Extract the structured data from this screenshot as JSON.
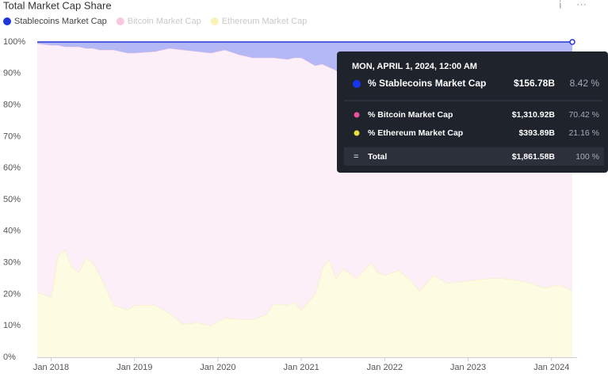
{
  "chart_data": {
    "type": "area",
    "stacked": true,
    "title": "Total Market Cap Share",
    "x": [
      "2017-11",
      "2018-01",
      "2018-02",
      "2018-03",
      "2018-04",
      "2018-05",
      "2018-06",
      "2018-07",
      "2018-08",
      "2018-10",
      "2018-12",
      "2019-01",
      "2019-04",
      "2019-06",
      "2019-08",
      "2019-10",
      "2019-12",
      "2020-02",
      "2020-04",
      "2020-06",
      "2020-08",
      "2020-09",
      "2020-11",
      "2020-12",
      "2021-01",
      "2021-03",
      "2021-04",
      "2021-05",
      "2021-06",
      "2021-07",
      "2021-09",
      "2021-11",
      "2021-12",
      "2022-01",
      "2022-03",
      "2022-05",
      "2022-06",
      "2022-08",
      "2022-10",
      "2022-12",
      "2023-02",
      "2023-04",
      "2023-06",
      "2023-08",
      "2023-10",
      "2023-12",
      "2024-02",
      "2024-04"
    ],
    "series": [
      {
        "name": "Stablecoins Market Cap",
        "color": "#1f36d8",
        "fill": "#b4b9f6",
        "values": [
          0.5,
          1,
          1,
          1.5,
          1.5,
          1.5,
          2,
          2,
          2.5,
          2.5,
          3.5,
          3.5,
          3,
          2,
          2.5,
          3,
          3.5,
          2.5,
          4,
          5,
          5,
          5,
          5.5,
          5,
          5,
          7.5,
          7,
          8,
          9,
          11,
          10,
          9,
          10,
          11,
          12,
          14,
          15,
          14,
          14,
          14,
          13,
          12,
          11.5,
          11,
          10,
          9,
          8.5,
          8.42
        ]
      },
      {
        "name": "Bitcoin Market Cap",
        "color": "#f6c7e0",
        "fill": "#fdeff7",
        "values": [
          79,
          80,
          66.5,
          64.5,
          70,
          71.5,
          66.5,
          68,
          71.5,
          81,
          81.5,
          80,
          80.5,
          84,
          87,
          86,
          86.5,
          85,
          84,
          83,
          81.5,
          78,
          78,
          77.5,
          80,
          72.5,
          65,
          61,
          66,
          61,
          65,
          61,
          63,
          63,
          60.5,
          62,
          64,
          60,
          62.5,
          62,
          62.5,
          63,
          63.5,
          64.5,
          66.5,
          69,
          68.5,
          70.42
        ]
      },
      {
        "name": "Ethereum Market Cap",
        "color": "#f2ecb8",
        "fill": "#fdfbe2",
        "values": [
          20.5,
          19,
          32.5,
          34,
          28.5,
          27,
          31.5,
          30,
          26,
          16.5,
          15,
          16.5,
          16.5,
          14,
          10.5,
          11,
          10,
          12.5,
          12,
          12,
          13.5,
          17,
          16.5,
          17.5,
          15,
          20,
          28,
          31,
          25,
          28,
          25,
          30,
          27,
          26,
          27.5,
          24,
          21,
          26,
          23.5,
          24,
          24.5,
          25,
          25,
          24.5,
          23.5,
          22,
          23,
          21.16
        ]
      }
    ],
    "xlim": [
      "2017-11",
      "2024-04"
    ],
    "xticks": [
      {
        "value": "2018-01",
        "label": "Jan 2018"
      },
      {
        "value": "2019-01",
        "label": "Jan 2019"
      },
      {
        "value": "2020-01",
        "label": "Jan 2020"
      },
      {
        "value": "2021-01",
        "label": "Jan 2021"
      },
      {
        "value": "2022-01",
        "label": "Jan 2022"
      },
      {
        "value": "2023-01",
        "label": "Jan 2023"
      },
      {
        "value": "2024-01",
        "label": "Jan 2024"
      }
    ],
    "ylim": [
      0,
      100
    ],
    "yticks": [
      {
        "value": 0,
        "label": "0%"
      },
      {
        "value": 10,
        "label": "10%"
      },
      {
        "value": 20,
        "label": "20%"
      },
      {
        "value": 30,
        "label": "30%"
      },
      {
        "value": 40,
        "label": "40%"
      },
      {
        "value": 50,
        "label": "50%"
      },
      {
        "value": 60,
        "label": "60%"
      },
      {
        "value": 70,
        "label": "70%"
      },
      {
        "value": 80,
        "label": "80%"
      },
      {
        "value": 90,
        "label": "90%"
      },
      {
        "value": 100,
        "label": "100%"
      }
    ],
    "grid": false,
    "tooltip": {
      "date": "MON, APRIL 1, 2024, 12:00 AM",
      "rows": [
        {
          "name": "% Stablecoins Market Cap",
          "value": "$156.78B",
          "share": "8.42 %",
          "color": "#1536f0"
        },
        {
          "name": "% Bitcoin Market Cap",
          "value": "$1,310.92B",
          "share": "70.42 %",
          "color": "#e8529e"
        },
        {
          "name": "% Ethereum Market Cap",
          "value": "$393.89B",
          "share": "21.16 %",
          "color": "#e6e03a"
        }
      ],
      "total": {
        "symbol": "=",
        "name": "Total",
        "value": "$1,861.58B",
        "share": "100 %"
      }
    }
  }
}
